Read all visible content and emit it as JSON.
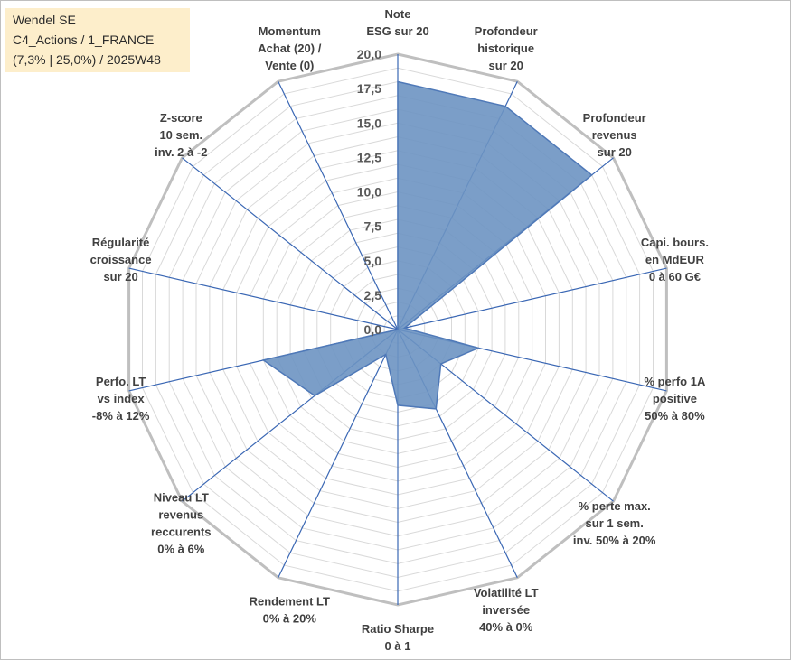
{
  "chart_data": {
    "type": "radar",
    "title_lines": [
      "Wendel SE",
      "C4_Actions / 1_FRANCE",
      "(7,3% | 25,0%) / 2025W48"
    ],
    "rmax": 20,
    "ticks": [
      "0,0",
      "2,5",
      "5,0",
      "7,5",
      "10,0",
      "12,5",
      "15,0",
      "17,5",
      "20,0"
    ],
    "tick_values": [
      0,
      2.5,
      5,
      7.5,
      10,
      12.5,
      15,
      17.5,
      20
    ],
    "grid_levels": [
      1,
      2,
      3,
      4,
      5,
      6,
      7,
      8,
      9,
      10,
      11,
      12,
      13,
      14,
      15,
      16,
      17,
      18,
      19,
      20
    ],
    "colors": {
      "fill": "#6d93c2",
      "line": "#4f79b8",
      "grid": "#d9d9d9",
      "outer": "#bfbfbf",
      "axis": "#3a67b4"
    },
    "axes": [
      {
        "lines": [
          "Note",
          "ESG sur 20"
        ]
      },
      {
        "lines": [
          "Profondeur",
          "historique",
          "sur 20"
        ]
      },
      {
        "lines": [
          "Profondeur",
          "revenus",
          "sur 20"
        ]
      },
      {
        "lines": [
          "Capi. bours.",
          "en MdEUR",
          "0 à 60 G€"
        ]
      },
      {
        "lines": [
          "% perfo 1A",
          "positive",
          "50% à 80%"
        ]
      },
      {
        "lines": [
          "% perte max.",
          "sur 1 sem.",
          "inv. 50% à 20%"
        ]
      },
      {
        "lines": [
          "Volatilité LT",
          "inversée",
          "40% à 0%"
        ]
      },
      {
        "lines": [
          "Ratio Sharpe",
          "0 à 1"
        ]
      },
      {
        "lines": [
          "Rendement LT",
          "0% à 20%"
        ]
      },
      {
        "lines": [
          "Niveau LT",
          "revenus",
          "reccurents",
          "0% à 6%"
        ]
      },
      {
        "lines": [
          "Perfo. LT",
          "vs index",
          "-8% à 12%"
        ]
      },
      {
        "lines": [
          "Régularité",
          "croissance",
          "sur 20"
        ]
      },
      {
        "lines": [
          "Z-score",
          "10 sem.",
          "inv. 2 à -2"
        ]
      },
      {
        "lines": [
          "Momentum",
          "Achat (20) /",
          "Vente (0)"
        ]
      }
    ],
    "series": [
      {
        "name": "Wendel SE",
        "values": [
          18,
          18,
          18,
          0.5,
          6.0,
          4.0,
          6.4,
          5.5,
          2.0,
          7.7,
          10.0,
          0.0,
          0.0,
          0.0
        ]
      }
    ]
  }
}
